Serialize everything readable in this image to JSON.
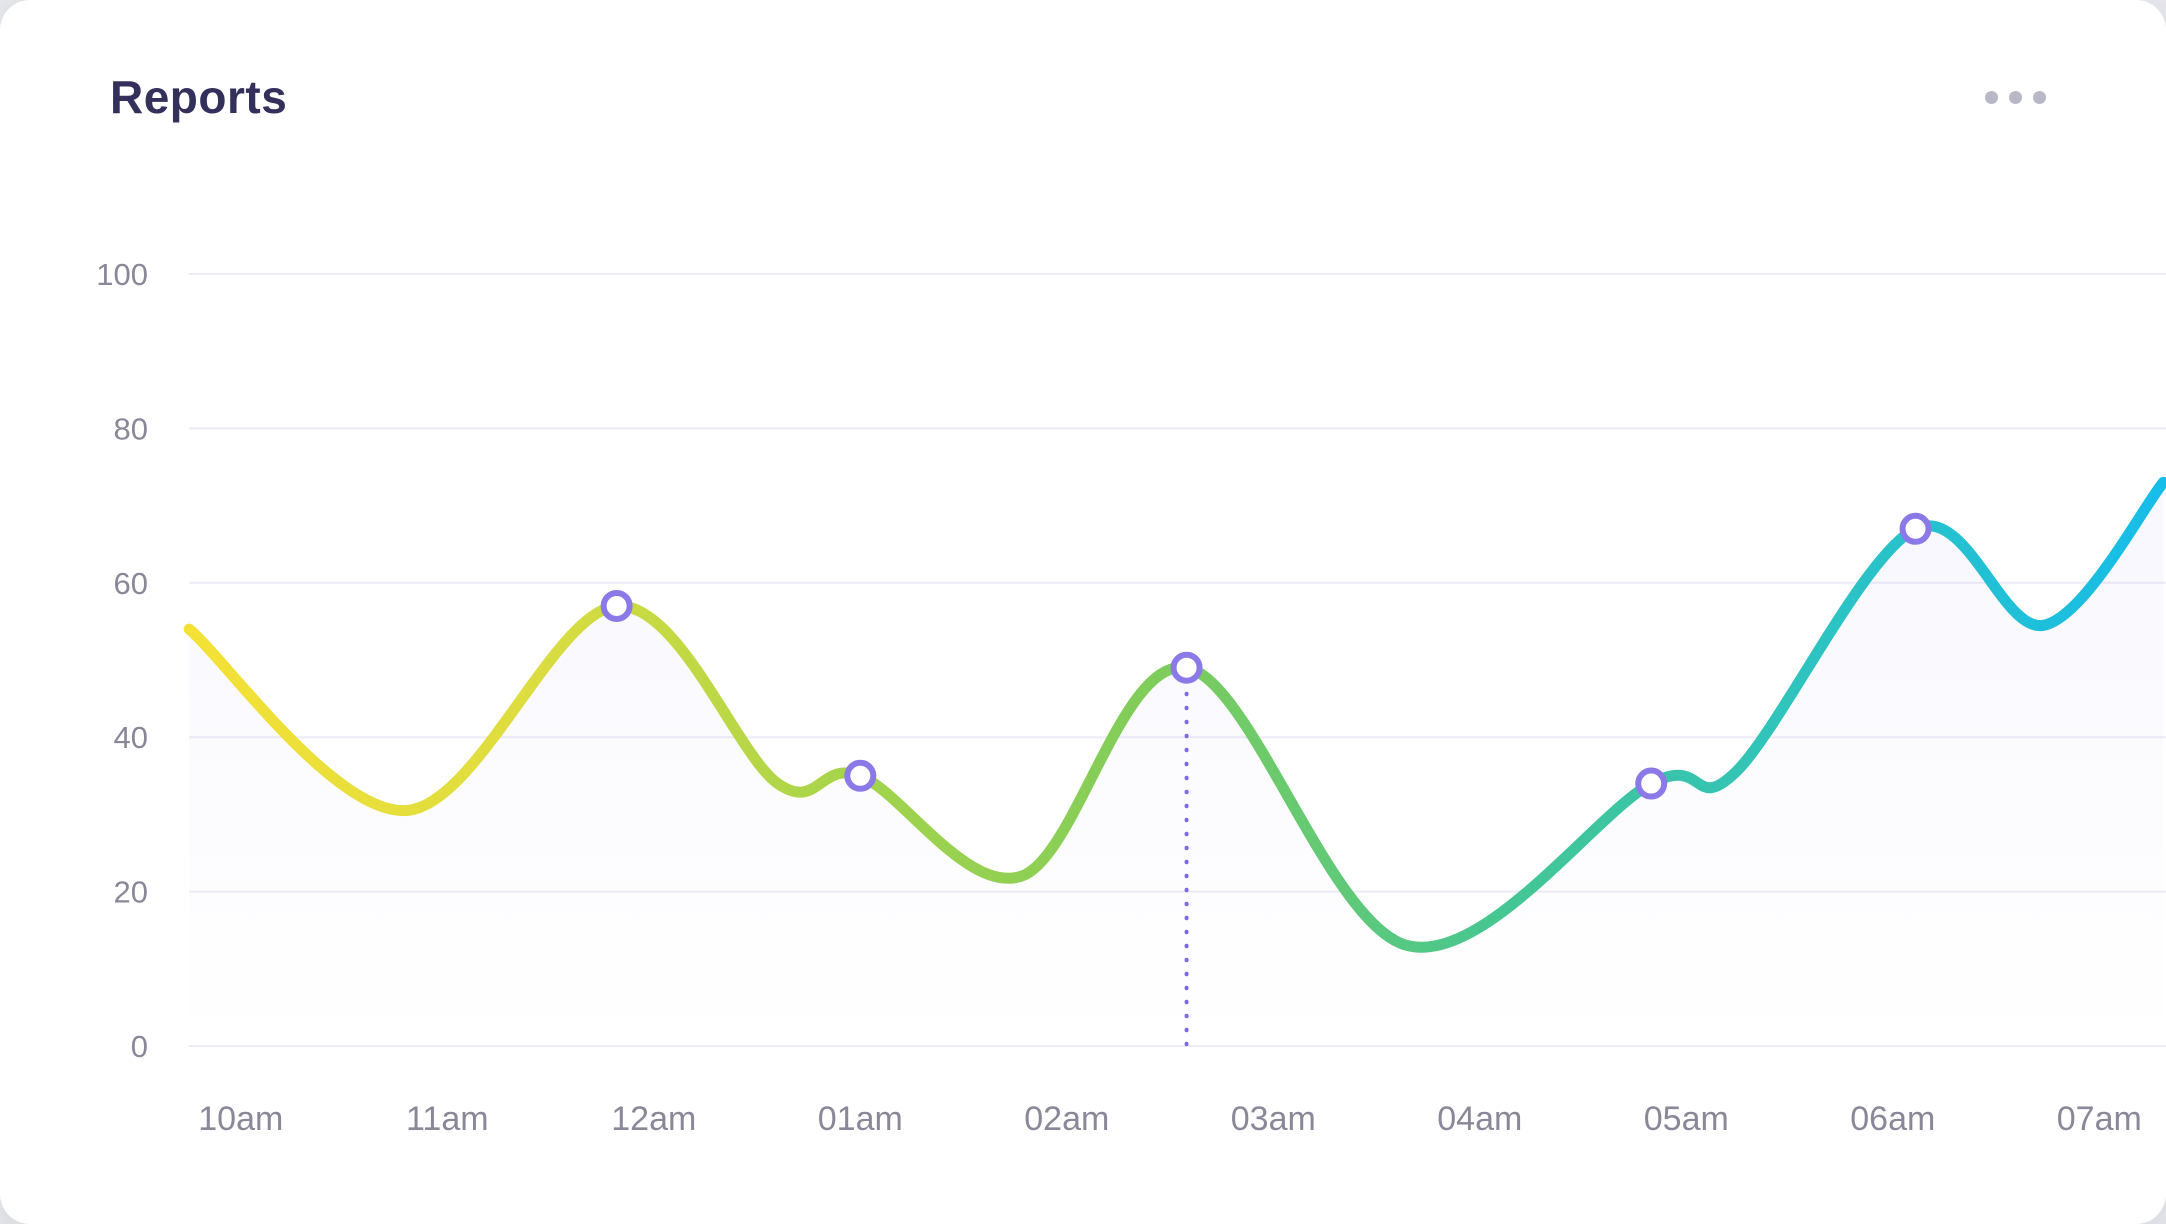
{
  "card": {
    "title": "Reports",
    "more_options_icon": "ellipsis-horizontal-icon"
  },
  "chart_data": {
    "type": "line",
    "title": "Reports",
    "categories": [
      "10am",
      "11am",
      "12am",
      "01am",
      "02am",
      "03am",
      "04am",
      "05am",
      "06am",
      "07am"
    ],
    "y_ticks": [
      0,
      20,
      40,
      60,
      80,
      100
    ],
    "ylim": [
      0,
      100
    ],
    "grid": "horizontal",
    "legend": "none",
    "line_points": [
      {
        "x": -0.25,
        "y": 54
      },
      {
        "x": 0.8,
        "y": 30.5
      },
      {
        "x": 1.82,
        "y": 57
      },
      {
        "x": 2.6,
        "y": 34
      },
      {
        "x": 3.0,
        "y": 35
      },
      {
        "x": 3.78,
        "y": 22
      },
      {
        "x": 4.58,
        "y": 49
      },
      {
        "x": 5.65,
        "y": 13
      },
      {
        "x": 6.83,
        "y": 34
      },
      {
        "x": 7.24,
        "y": 35.5
      },
      {
        "x": 8.11,
        "y": 67
      },
      {
        "x": 8.73,
        "y": 54.5
      },
      {
        "x": 9.31,
        "y": 73
      }
    ],
    "markers": [
      {
        "x": 1.82,
        "y": 57
      },
      {
        "x": 3.0,
        "y": 35
      },
      {
        "x": 4.58,
        "y": 49,
        "guideline": true
      },
      {
        "x": 6.83,
        "y": 34
      },
      {
        "x": 8.11,
        "y": 67
      }
    ],
    "colors": {
      "gradient": [
        "#f4e135",
        "#dedd3f",
        "#a6d44a",
        "#7ccc5c",
        "#45c693",
        "#2cc3c3",
        "#16bde9"
      ],
      "marker_stroke": "#8b79e8",
      "marker_fill": "#ffffff",
      "guideline": "#7b6ce6",
      "grid": "#edecf5",
      "axis_text": "#8a8799",
      "title": "#33305b",
      "area_top": "rgba(130,115,230,0.07)",
      "area_bottom": "rgba(130,115,230,0.0)"
    }
  }
}
